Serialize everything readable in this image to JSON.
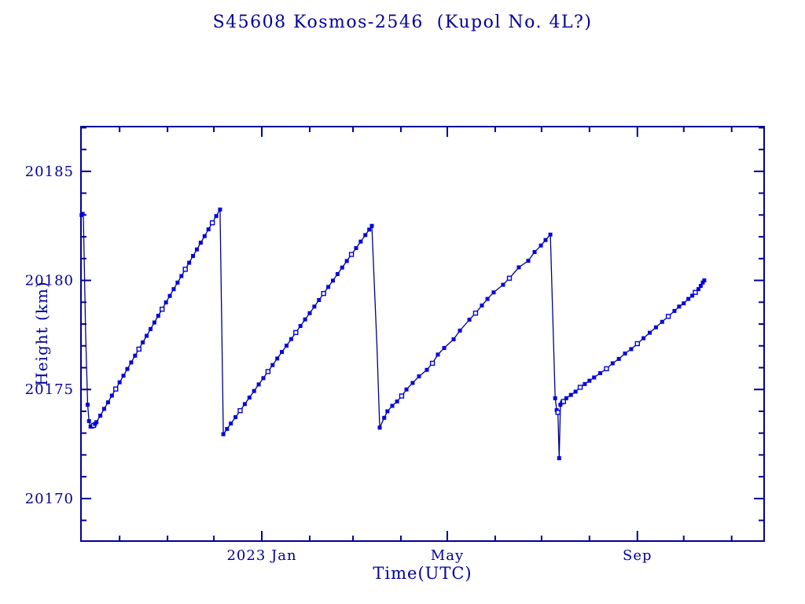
{
  "colors": {
    "axis": "#000099",
    "line": "#00008B",
    "marker": "#0000DC",
    "background": "#ffffff"
  },
  "chart_data": {
    "type": "line",
    "title": "S45608 Kosmos-2546  (Kupol No. 4L?)",
    "xlabel": "Time(UTC)",
    "ylabel": "Height (km)",
    "x_unit": "days since 2022-09-06",
    "xlim": [
      0,
      442
    ],
    "ylim": [
      20168.05,
      20187.05
    ],
    "grid": false,
    "legend": "none",
    "y_major_ticks": [
      {
        "value": 20170,
        "label": "20170"
      },
      {
        "value": 20175,
        "label": "20175"
      },
      {
        "value": 20180,
        "label": "20180"
      },
      {
        "value": 20185,
        "label": "20185"
      }
    ],
    "y_minor_ticks": [
      20169,
      20171,
      20172,
      20173,
      20174,
      20176,
      20177,
      20178,
      20179,
      20181,
      20182,
      20183,
      20184,
      20186,
      20187
    ],
    "x_major_ticks": [
      {
        "day": 117,
        "label": "2023 Jan"
      },
      {
        "day": 237,
        "label": "May"
      },
      {
        "day": 360,
        "label": "Sep"
      }
    ],
    "x_minor_ticks": [
      25,
      56,
      86,
      148,
      176,
      207,
      268,
      298,
      329,
      390,
      421
    ],
    "series": [
      {
        "name": "height-km",
        "marker_codes": "0=line-vertex-only 1=filled-square 2=open-square",
        "points": [
          [
            0.4,
            20183.0,
            1
          ],
          [
            1.1,
            20183.05,
            1
          ],
          [
            1.6,
            20182.85,
            0
          ],
          [
            3.0,
            20177.6,
            0
          ],
          [
            4.3,
            20174.3,
            1
          ],
          [
            5.2,
            20173.55,
            1
          ],
          [
            6.2,
            20173.3,
            1
          ],
          [
            7.2,
            20173.3,
            1
          ],
          [
            8.2,
            20173.35,
            2
          ],
          [
            9.1,
            20173.42,
            1
          ],
          [
            10.0,
            20173.5,
            1
          ],
          [
            12.5,
            20173.8,
            1
          ],
          [
            15,
            20174.11,
            1
          ],
          [
            17.5,
            20174.41,
            1
          ],
          [
            20,
            20174.72,
            1
          ],
          [
            22.5,
            20175.02,
            2
          ],
          [
            25,
            20175.33,
            1
          ],
          [
            27.5,
            20175.63,
            1
          ],
          [
            30,
            20175.94,
            1
          ],
          [
            32.5,
            20176.24,
            1
          ],
          [
            35,
            20176.55,
            1
          ],
          [
            37.5,
            20176.85,
            2
          ],
          [
            40,
            20177.16,
            1
          ],
          [
            42.5,
            20177.46,
            1
          ],
          [
            45,
            20177.77,
            1
          ],
          [
            47.5,
            20178.07,
            1
          ],
          [
            50,
            20178.38,
            1
          ],
          [
            52.5,
            20178.68,
            2
          ],
          [
            55,
            20178.99,
            1
          ],
          [
            57.5,
            20179.29,
            1
          ],
          [
            60,
            20179.6,
            1
          ],
          [
            62.5,
            20179.9,
            1
          ],
          [
            65,
            20180.2,
            1
          ],
          [
            67.5,
            20180.51,
            2
          ],
          [
            70,
            20180.81,
            1
          ],
          [
            72.5,
            20181.12,
            1
          ],
          [
            75,
            20181.42,
            1
          ],
          [
            77.5,
            20181.73,
            1
          ],
          [
            80,
            20182.03,
            1
          ],
          [
            82.5,
            20182.34,
            1
          ],
          [
            85,
            20182.64,
            2
          ],
          [
            87.5,
            20182.95,
            1
          ],
          [
            90,
            20183.25,
            1
          ],
          [
            92.1,
            20172.95,
            1
          ],
          [
            94.5,
            20173.19,
            1
          ],
          [
            97,
            20173.44,
            1
          ],
          [
            100,
            20173.73,
            1
          ],
          [
            103,
            20174.03,
            2
          ],
          [
            106,
            20174.33,
            1
          ],
          [
            109,
            20174.63,
            1
          ],
          [
            112,
            20174.93,
            1
          ],
          [
            115,
            20175.23,
            1
          ],
          [
            118,
            20175.52,
            1
          ],
          [
            121,
            20175.82,
            2
          ],
          [
            124,
            20176.12,
            1
          ],
          [
            127,
            20176.42,
            1
          ],
          [
            130,
            20176.72,
            1
          ],
          [
            133,
            20177.01,
            1
          ],
          [
            136,
            20177.31,
            1
          ],
          [
            139,
            20177.61,
            2
          ],
          [
            142,
            20177.91,
            1
          ],
          [
            145,
            20178.21,
            1
          ],
          [
            148,
            20178.5,
            1
          ],
          [
            151,
            20178.8,
            1
          ],
          [
            154,
            20179.1,
            1
          ],
          [
            157,
            20179.4,
            2
          ],
          [
            160,
            20179.7,
            1
          ],
          [
            163,
            20179.99,
            1
          ],
          [
            166,
            20180.29,
            1
          ],
          [
            169,
            20180.59,
            1
          ],
          [
            172,
            20180.89,
            1
          ],
          [
            175,
            20181.19,
            2
          ],
          [
            178,
            20181.48,
            1
          ],
          [
            181,
            20181.78,
            1
          ],
          [
            184,
            20182.08,
            1
          ],
          [
            186.5,
            20182.33,
            1
          ],
          [
            188.2,
            20182.5,
            1
          ],
          [
            191.5,
            20177.0,
            0
          ],
          [
            193.3,
            20173.25,
            1
          ],
          [
            196.2,
            20173.7,
            1
          ],
          [
            198.3,
            20174.0,
            1
          ],
          [
            201.4,
            20174.25,
            1
          ],
          [
            204.5,
            20174.45,
            1
          ],
          [
            207.5,
            20174.7,
            2
          ],
          [
            210.6,
            20175.0,
            1
          ],
          [
            214.6,
            20175.3,
            1
          ],
          [
            218.7,
            20175.6,
            1
          ],
          [
            223.8,
            20175.9,
            1
          ],
          [
            227.4,
            20176.2,
            2
          ],
          [
            230.9,
            20176.6,
            1
          ],
          [
            235,
            20176.9,
            1
          ],
          [
            241.1,
            20177.3,
            1
          ],
          [
            245.2,
            20177.7,
            1
          ],
          [
            251.3,
            20178.2,
            1
          ],
          [
            255.3,
            20178.5,
            2
          ],
          [
            259.4,
            20178.85,
            1
          ],
          [
            263,
            20179.15,
            1
          ],
          [
            267,
            20179.45,
            1
          ],
          [
            273.1,
            20179.8,
            1
          ],
          [
            277.2,
            20180.1,
            2
          ],
          [
            283.3,
            20180.6,
            1
          ],
          [
            289.4,
            20180.9,
            1
          ],
          [
            293.5,
            20181.3,
            1
          ],
          [
            297.6,
            20181.6,
            1
          ],
          [
            300.6,
            20181.85,
            1
          ],
          [
            303.7,
            20182.1,
            1
          ],
          [
            306.8,
            20174.6,
            1
          ],
          [
            307.8,
            20174.05,
            1
          ],
          [
            308.6,
            20173.95,
            2
          ],
          [
            309.4,
            20171.85,
            1
          ],
          [
            310.2,
            20174.3,
            1
          ],
          [
            311.2,
            20174.4,
            1
          ],
          [
            312.2,
            20174.45,
            2
          ],
          [
            314,
            20174.6,
            1
          ],
          [
            317,
            20174.75,
            1
          ],
          [
            320,
            20174.9,
            1
          ],
          [
            323,
            20175.1,
            2
          ],
          [
            326,
            20175.25,
            1
          ],
          [
            329,
            20175.4,
            1
          ],
          [
            332,
            20175.55,
            1
          ],
          [
            336,
            20175.75,
            1
          ],
          [
            340,
            20175.95,
            2
          ],
          [
            344,
            20176.2,
            1
          ],
          [
            348,
            20176.4,
            1
          ],
          [
            352,
            20176.65,
            1
          ],
          [
            356,
            20176.85,
            1
          ],
          [
            360,
            20177.1,
            2
          ],
          [
            364,
            20177.35,
            1
          ],
          [
            368,
            20177.6,
            1
          ],
          [
            372,
            20177.85,
            1
          ],
          [
            376,
            20178.1,
            1
          ],
          [
            380,
            20178.35,
            2
          ],
          [
            384,
            20178.6,
            1
          ],
          [
            387,
            20178.8,
            1
          ],
          [
            390,
            20178.95,
            1
          ],
          [
            393,
            20179.15,
            1
          ],
          [
            395.5,
            20179.3,
            1
          ],
          [
            397.5,
            20179.45,
            2
          ],
          [
            399.5,
            20179.6,
            1
          ],
          [
            401,
            20179.75,
            1
          ],
          [
            402.3,
            20179.9,
            1
          ],
          [
            403.3,
            20180.0,
            1
          ]
        ]
      }
    ]
  }
}
